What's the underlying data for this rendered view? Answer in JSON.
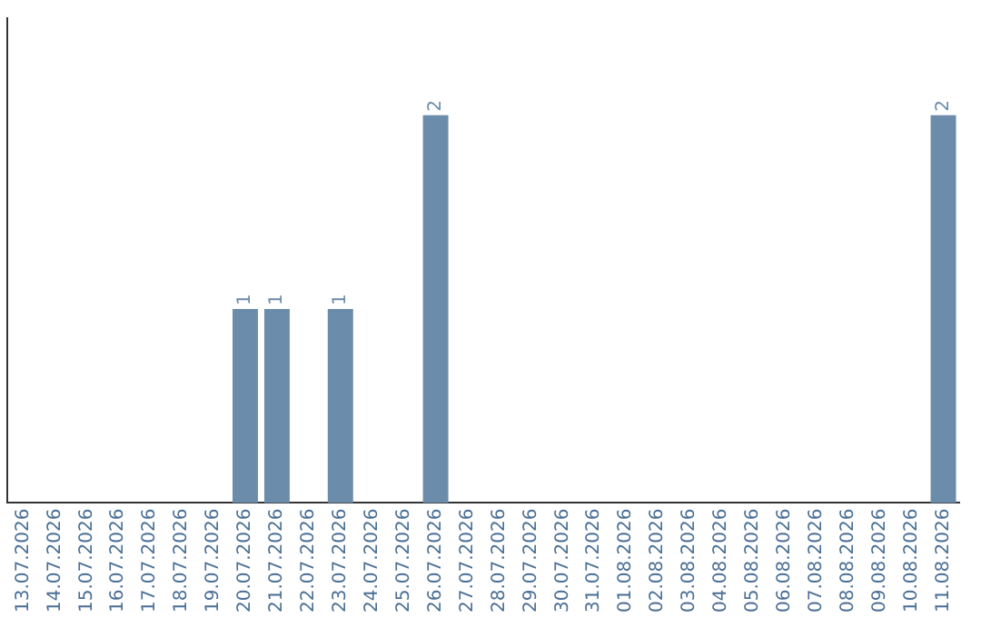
{
  "chart_data": {
    "type": "bar",
    "categories": [
      "13.07.2026",
      "14.07.2026",
      "15.07.2026",
      "16.07.2026",
      "17.07.2026",
      "18.07.2026",
      "19.07.2026",
      "20.07.2026",
      "21.07.2026",
      "22.07.2026",
      "23.07.2026",
      "24.07.2026",
      "25.07.2026",
      "26.07.2026",
      "27.07.2026",
      "28.07.2026",
      "29.07.2026",
      "30.07.2026",
      "31.07.2026",
      "01.08.2026",
      "02.08.2026",
      "03.08.2026",
      "04.08.2026",
      "05.08.2026",
      "06.08.2026",
      "07.08.2026",
      "08.08.2026",
      "09.08.2026",
      "10.08.2026",
      "11.08.2026"
    ],
    "values": [
      0,
      0,
      0,
      0,
      0,
      0,
      0,
      1,
      1,
      0,
      1,
      0,
      0,
      2,
      0,
      0,
      0,
      0,
      0,
      0,
      0,
      0,
      0,
      0,
      0,
      0,
      0,
      0,
      0,
      2
    ],
    "value_labels": [
      null,
      null,
      null,
      null,
      null,
      null,
      null,
      "1",
      "1",
      null,
      "1",
      null,
      null,
      "2",
      null,
      null,
      null,
      null,
      null,
      null,
      null,
      null,
      null,
      null,
      null,
      null,
      null,
      null,
      null,
      "2"
    ],
    "color": "#6b8caa",
    "grid": false,
    "legend": false,
    "tick_labels": "x"
  }
}
